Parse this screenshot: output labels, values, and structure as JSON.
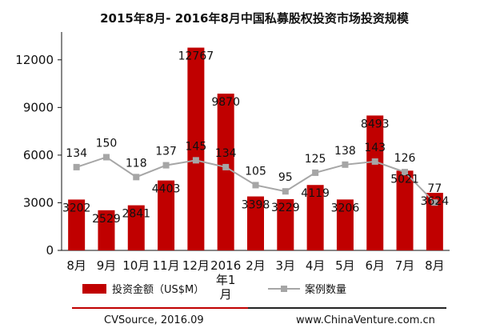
{
  "chart_data": {
    "type": "bar",
    "title": "2015年8月- 2016年8月中国私募股权投资市场投资规模",
    "categories": [
      "8月",
      "9月",
      "10月",
      "11月",
      "12月",
      "2016年1月",
      "2月",
      "3月",
      "4月",
      "5月",
      "6月",
      "7月",
      "8月"
    ],
    "category_lines": [
      [
        "8月"
      ],
      [
        "9月"
      ],
      [
        "10月"
      ],
      [
        "11月"
      ],
      [
        "12月"
      ],
      [
        "2016",
        "年1",
        "月"
      ],
      [
        "2月"
      ],
      [
        "3月"
      ],
      [
        "4月"
      ],
      [
        "5月"
      ],
      [
        "6月"
      ],
      [
        "7月"
      ],
      [
        "8月"
      ]
    ],
    "series": [
      {
        "name": "投资金额（US$M）",
        "type": "bar",
        "color": "#c00000",
        "values": [
          3202,
          2529,
          2841,
          4403,
          12767,
          9870,
          3398,
          3229,
          4119,
          3206,
          8493,
          5021,
          3624
        ]
      },
      {
        "name": "案例数量",
        "type": "line",
        "color": "#a6a6a6",
        "values": [
          134,
          150,
          118,
          137,
          145,
          134,
          105,
          95,
          125,
          138,
          143,
          126,
          77
        ]
      }
    ],
    "yticks": [
      "0",
      "3000",
      "6000",
      "9000",
      "12000"
    ],
    "ylim": [
      0,
      13500
    ],
    "line_scale_note": "case counts plotted on a secondary scale (no printed axis)",
    "legend": {
      "placement": "bottom"
    },
    "grid": false
  },
  "footer": {
    "source": "CVSource, 2016.09",
    "website": "www.ChinaVenture.com.cn",
    "line_colors": [
      "#c00000",
      "#222222"
    ]
  }
}
